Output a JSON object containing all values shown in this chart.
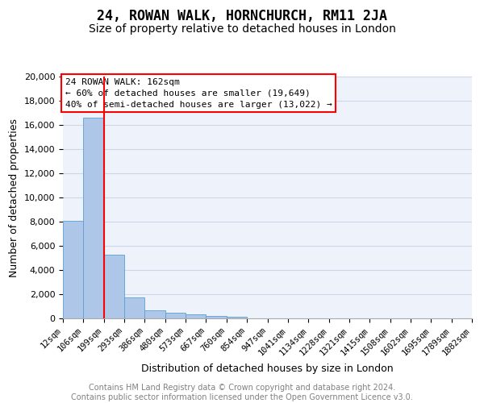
{
  "title_line1": "24, ROWAN WALK, HORNCHURCH, RM11 2JA",
  "title_line2": "Size of property relative to detached houses in London",
  "xlabel": "Distribution of detached houses by size in London",
  "ylabel": "Number of detached properties",
  "bar_values": [
    8050,
    16600,
    5300,
    1750,
    700,
    450,
    350,
    200,
    150,
    0,
    0,
    0,
    0,
    0,
    0,
    0,
    0,
    0,
    0,
    0
  ],
  "bin_labels": [
    "12sqm",
    "106sqm",
    "199sqm",
    "293sqm",
    "386sqm",
    "480sqm",
    "573sqm",
    "667sqm",
    "760sqm",
    "854sqm",
    "947sqm",
    "1041sqm",
    "1134sqm",
    "1228sqm",
    "1321sqm",
    "1415sqm",
    "1508sqm",
    "1602sqm",
    "1695sqm",
    "1789sqm",
    "1882sqm"
  ],
  "bar_color": "#aec6e8",
  "bar_edge_color": "#5a9fd4",
  "vline_position": 2,
  "vline_color": "red",
  "annotation_line1": "24 ROWAN WALK: 162sqm",
  "annotation_line2": "← 60% of detached houses are smaller (19,649)",
  "annotation_line3": "40% of semi-detached houses are larger (13,022) →",
  "annotation_box_facecolor": "white",
  "annotation_box_edgecolor": "red",
  "ylim_max": 20000,
  "yticks": [
    0,
    2000,
    4000,
    6000,
    8000,
    10000,
    12000,
    14000,
    16000,
    18000,
    20000
  ],
  "grid_color": "#cdd5e8",
  "plot_bg_color": "#eef2fa",
  "footer_line1": "Contains HM Land Registry data © Crown copyright and database right 2024.",
  "footer_line2": "Contains public sector information licensed under the Open Government Licence v3.0.",
  "title_fontsize": 12,
  "subtitle_fontsize": 10,
  "ylabel_fontsize": 9,
  "xlabel_fontsize": 9,
  "ytick_fontsize": 8,
  "xtick_fontsize": 7.5,
  "annotation_fontsize": 8,
  "footer_fontsize": 7
}
